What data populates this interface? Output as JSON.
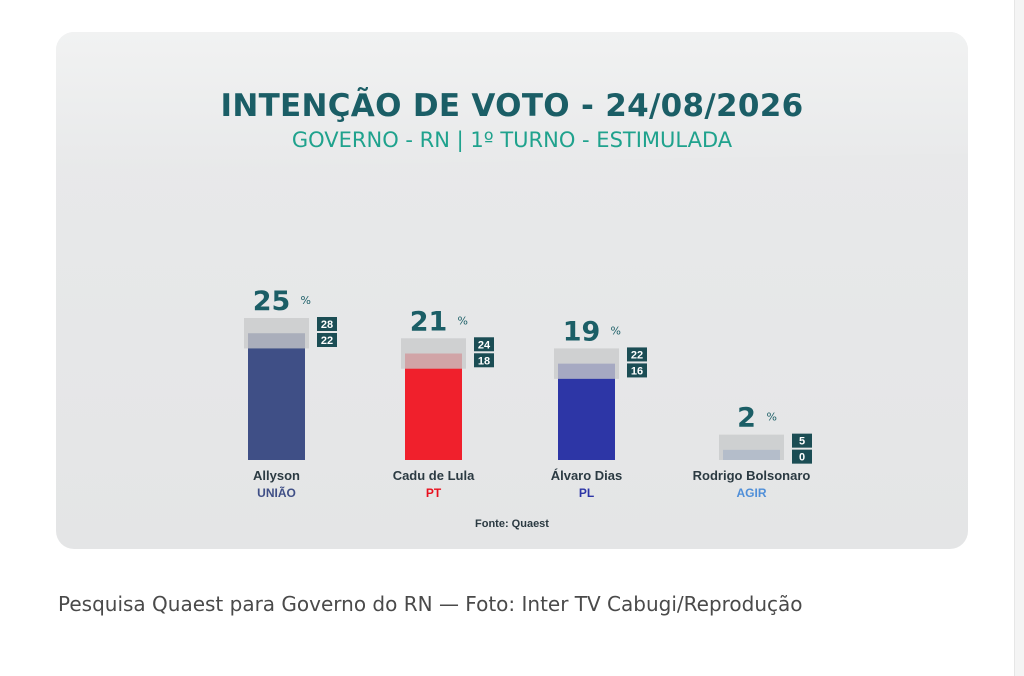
{
  "header": {
    "title": "INTENÇÃO DE VOTO - 24/08/2026",
    "subtitle": "GOVERNO - RN | 1º TURNO - ESTIMULADA"
  },
  "source": "Fonte: Quaest",
  "caption": "Pesquisa Quaest para Governo do RN — Foto: Inter TV Cabugi/Reprodução",
  "percent_symbol": "%",
  "chart_data": {
    "type": "bar",
    "title": "INTENÇÃO DE VOTO - 24/08/2026",
    "subtitle": "GOVERNO - RN | 1º TURNO - ESTIMULADA",
    "categories": [
      "Allyson",
      "Cadu de Lula",
      "Álvaro Dias",
      "Rodrigo Bolsonaro"
    ],
    "parties": [
      "UNIÃO",
      "PT",
      "PL",
      "AGIR"
    ],
    "values": [
      25,
      21,
      19,
      2
    ],
    "upper": [
      28,
      24,
      22,
      5
    ],
    "lower": [
      22,
      18,
      16,
      0
    ],
    "unit": "%",
    "colors": [
      "#3f4f86",
      "#f0202c",
      "#2d36a6",
      "#6f92c6"
    ],
    "party_colors": [
      "#3f4f86",
      "#e8101e",
      "#2d36a6",
      "#4f8fd8"
    ],
    "ylim": [
      0,
      28
    ],
    "grid": false,
    "legend": "none",
    "source": "Fonte: Quaest"
  }
}
